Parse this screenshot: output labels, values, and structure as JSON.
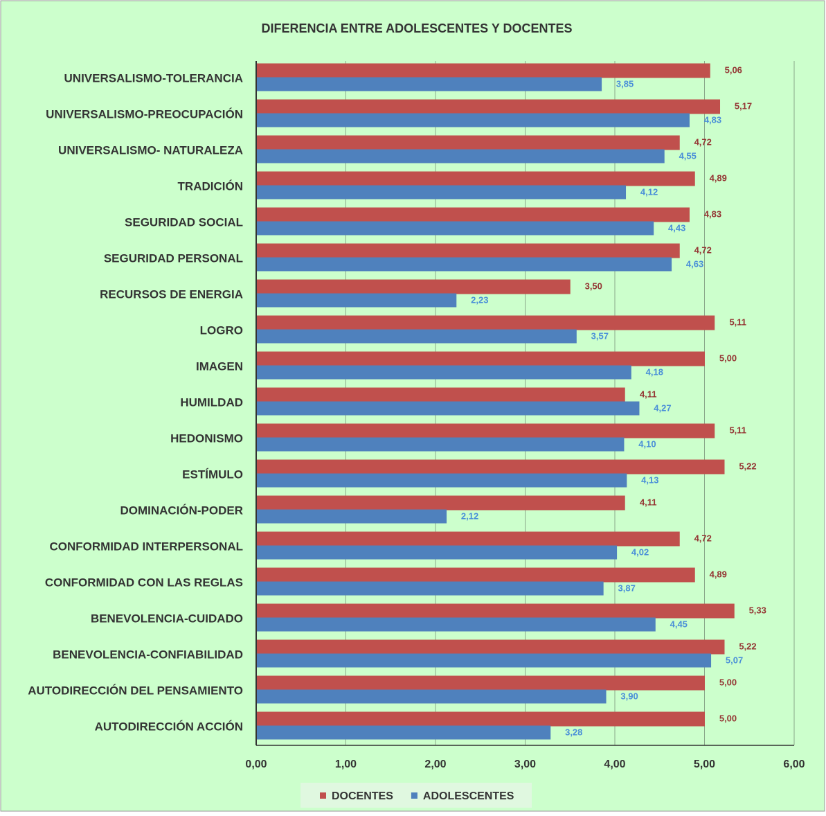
{
  "chart_data": {
    "type": "hbar",
    "title": "DIFERENCIA ENTRE ADOLESCENTES Y DOCENTES",
    "categories": [
      "UNIVERSALISMO-TOLERANCIA",
      "UNIVERSALISMO-PREOCUPACIÓN",
      "UNIVERSALISMO- NATURALEZA",
      "TRADICIÓN",
      "SEGURIDAD SOCIAL",
      "SEGURIDAD PERSONAL",
      "RECURSOS DE ENERGIA",
      "LOGRO",
      "IMAGEN",
      "HUMILDAD",
      "HEDONISMO",
      "ESTÍMULO",
      "DOMINACIÓN-PODER",
      "CONFORMIDAD INTERPERSONAL",
      "CONFORMIDAD CON LAS REGLAS",
      "BENEVOLENCIA-CUIDADO",
      "BENEVOLENCIA-CONFIABILIDAD",
      "AUTODIRECCIÓN DEL PENSAMIENTO",
      "AUTODIRECCIÓN ACCIÓN"
    ],
    "series": [
      {
        "name": "DOCENTES",
        "color": "#c0504d",
        "label_color": "#943634",
        "values": [
          5.06,
          5.17,
          4.72,
          4.89,
          4.83,
          4.72,
          3.5,
          5.11,
          5.0,
          4.11,
          5.11,
          5.22,
          4.11,
          4.72,
          4.89,
          5.33,
          5.22,
          5.0,
          5.0
        ],
        "value_labels": [
          "5,06",
          "5,17",
          "4,72",
          "4,89",
          "4,83",
          "4,72",
          "3,50",
          "5,11",
          "5,00",
          "4,11",
          "5,11",
          "5,22",
          "4,11",
          "4,72",
          "4,89",
          "5,33",
          "5,22",
          "5,00",
          "5,00"
        ]
      },
      {
        "name": "ADOLESCENTES",
        "color": "#4f81bd",
        "label_color": "#4a8fd8",
        "values": [
          3.85,
          4.83,
          4.55,
          4.12,
          4.43,
          4.63,
          2.23,
          3.57,
          4.18,
          4.27,
          4.1,
          4.13,
          2.12,
          4.02,
          3.87,
          4.45,
          5.07,
          3.9,
          3.28
        ],
        "value_labels": [
          "3,85",
          "4,83",
          "4,55",
          "4,12",
          "4,43",
          "4,63",
          "2,23",
          "3,57",
          "4,18",
          "4,27",
          "4,10",
          "4,13",
          "2,12",
          "4,02",
          "3,87",
          "4,45",
          "5,07",
          "3,90",
          "3,28"
        ]
      }
    ],
    "xlim": [
      0,
      6
    ],
    "xticks": [
      {
        "value": 0,
        "label": "0,00"
      },
      {
        "value": 1,
        "label": "1,00"
      },
      {
        "value": 2,
        "label": "2,00"
      },
      {
        "value": 3,
        "label": "3,00"
      },
      {
        "value": 4,
        "label": "4,00"
      },
      {
        "value": 5,
        "label": "5,00"
      },
      {
        "value": 6,
        "label": "6,00"
      }
    ],
    "grid": true,
    "legend": "bottom",
    "background": "#ccffcc"
  }
}
